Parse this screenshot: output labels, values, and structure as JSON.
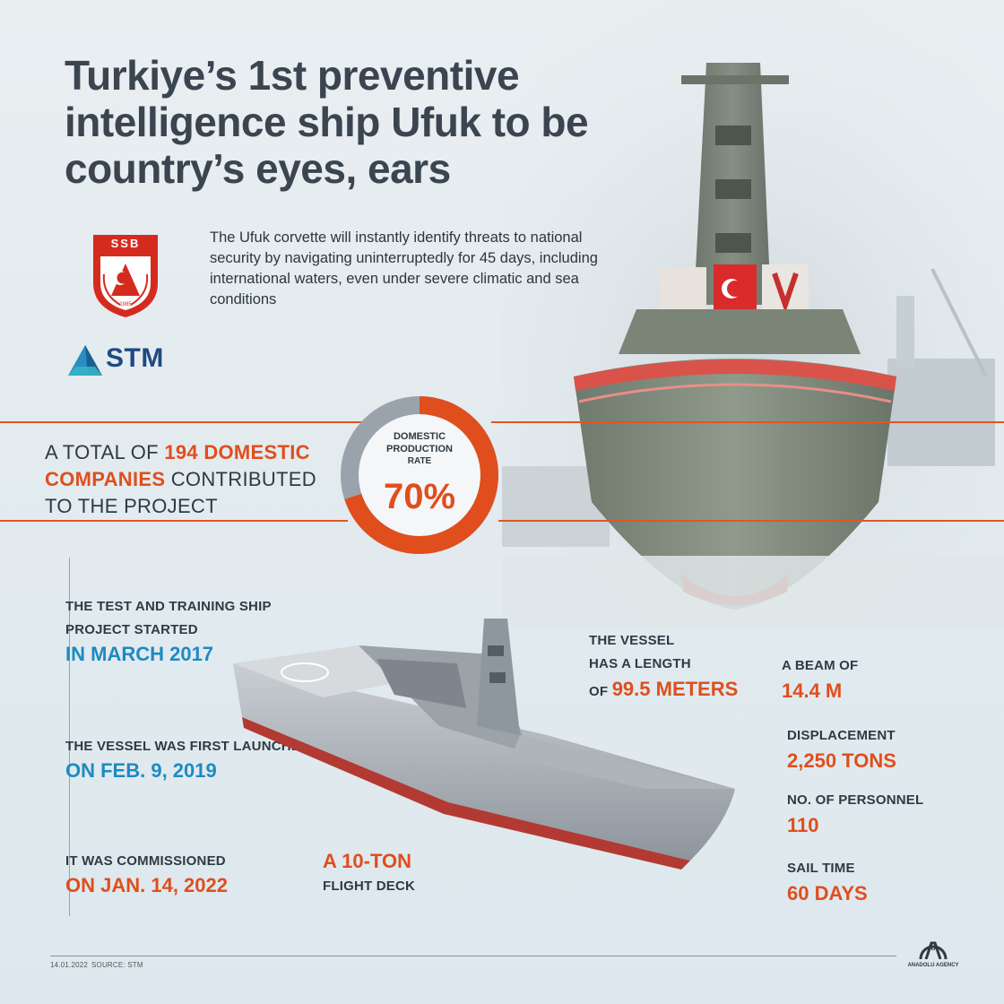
{
  "title": "Turkiye’s 1st preventive intelligence ship Ufuk to be country’s eyes, ears",
  "subtitle": "The Ufuk corvette will instantly identify threats to national security by navigating uninterruptedly for 45 days, including international waters, even under severe climatic and sea conditions",
  "logos": {
    "ssb_text": "SSB",
    "ssb_year": "1985",
    "stm_text": "STM"
  },
  "contribution": {
    "prefix": "A TOTAL OF",
    "highlight": "194 DOMESTIC COMPANIES",
    "suffix": "CONTRIBUTED TO THE PROJECT"
  },
  "donut": {
    "label_line1": "DOMESTIC",
    "label_line2": "PRODUCTION",
    "label_line3": "RATE",
    "value_text": "70%",
    "fraction": 0.7,
    "color_fill": "#e04e1d",
    "color_rest": "#9aa3ab"
  },
  "timeline": [
    {
      "label": "THE TEST AND TRAINING SHIP PROJECT STARTED",
      "value": "IN MARCH 2017"
    },
    {
      "label": "THE VESSEL WAS FIRST LAUNCHED",
      "value": "ON FEB. 9, 2019"
    },
    {
      "label": "IT WAS COMMISSIONED",
      "value": "ON JAN. 14, 2022"
    }
  ],
  "flight_deck": {
    "value": "A 10-TON",
    "label": "FLIGHT DECK"
  },
  "length": {
    "line1": "THE VESSEL",
    "line2": "HAS A LENGTH",
    "line3_prefix": "OF",
    "value": "99.5 METERS"
  },
  "specs": [
    {
      "label": "A BEAM OF",
      "value": "14.4 M"
    },
    {
      "label": "DISPLACEMENT",
      "value": "2,250 TONS"
    },
    {
      "label": "NO. OF PERSONNEL",
      "value": "110"
    },
    {
      "label": "SAIL TIME",
      "value": "60 DAYS"
    }
  ],
  "footer": {
    "date": "14.01.2022",
    "source": "SOURCE: STM",
    "agency_mark": "AA",
    "agency_name": "ANADOLU AGENCY"
  },
  "colors": {
    "accent": "#e04e1d",
    "blue": "#1e8ac2",
    "title": "#3a4550"
  },
  "icons": [
    "ssb-emblem-icon",
    "stm-logo-icon",
    "aa-logo-icon"
  ]
}
